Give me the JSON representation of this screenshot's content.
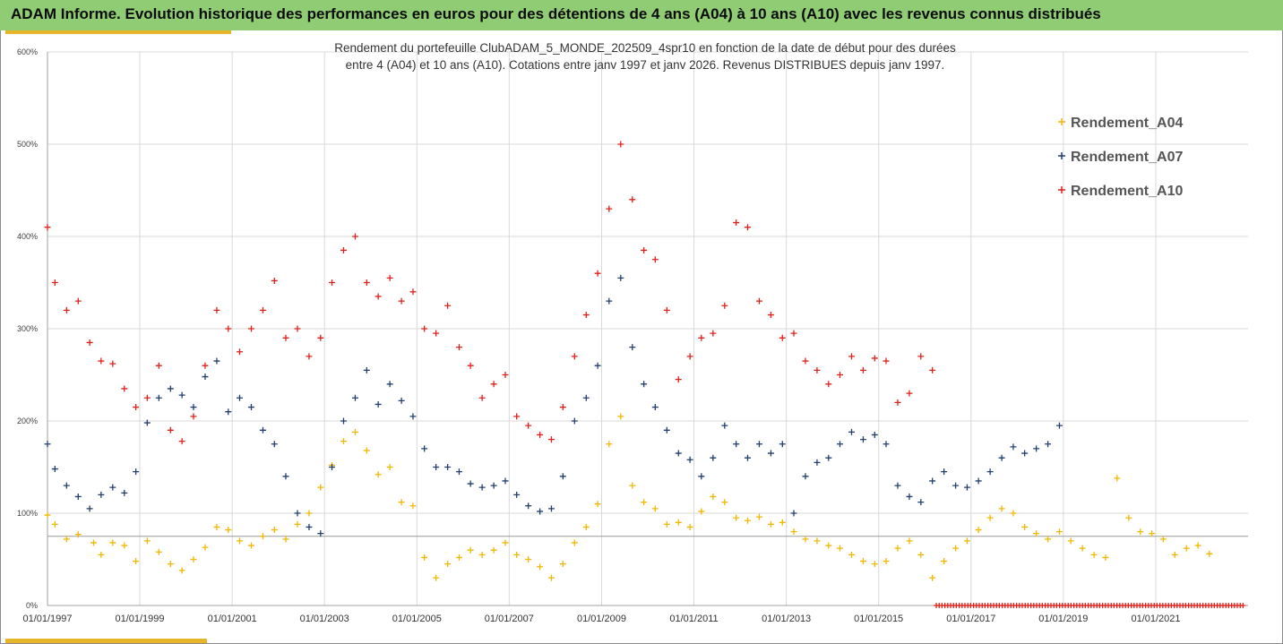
{
  "header": {
    "title": "ADAM Informe. Evolution historique des performances en euros pour des détentions de 4 ans (A04) à 10 ans (A10) avec les revenus connus distribués"
  },
  "colors": {
    "header_bg": "#8fcc74",
    "accent_bar": "#e7b52a",
    "grid": "#d9d9d9"
  },
  "chart_data": {
    "type": "scatter",
    "title_line1": "Rendement du portefeuille ClubADAM_5_MONDE_202509_4spr10  en fonction de la date de début pour des durées",
    "title_line2": "entre 4 (A04) et 10 ans (A10). Cotations entre janv 1997 et janv 2026. Revenus DISTRIBUES depuis janv 1997.",
    "xlabel": "",
    "ylabel": "",
    "x_range": [
      "1997-01-01",
      "2022-12-31"
    ],
    "y_range": [
      0,
      600
    ],
    "y_ticks": [
      "0%",
      "100%",
      "200%",
      "300%",
      "400%",
      "500%",
      "600%"
    ],
    "x_ticks": [
      "01/01/1997",
      "01/01/1999",
      "01/01/2001",
      "01/01/2003",
      "01/01/2005",
      "01/01/2007",
      "01/01/2009",
      "01/01/2011",
      "01/01/2013",
      "01/01/2015",
      "01/01/2017",
      "01/01/2019",
      "01/01/2021"
    ],
    "grid": true,
    "legend_position": "right",
    "reference_line_y": 75,
    "series": [
      {
        "name": "Rendement_A04",
        "color": "#f2b700",
        "marker": "+",
        "points": [
          [
            "1997-01",
            98
          ],
          [
            "1997-03",
            88
          ],
          [
            "1997-06",
            72
          ],
          [
            "1997-09",
            77
          ],
          [
            "1998-01",
            68
          ],
          [
            "1998-03",
            55
          ],
          [
            "1998-06",
            68
          ],
          [
            "1998-09",
            65
          ],
          [
            "1998-12",
            48
          ],
          [
            "1999-03",
            70
          ],
          [
            "1999-06",
            58
          ],
          [
            "1999-09",
            45
          ],
          [
            "1999-12",
            38
          ],
          [
            "2000-03",
            50
          ],
          [
            "2000-06",
            63
          ],
          [
            "2000-09",
            85
          ],
          [
            "2000-12",
            82
          ],
          [
            "2001-03",
            70
          ],
          [
            "2001-06",
            65
          ],
          [
            "2001-09",
            75
          ],
          [
            "2001-12",
            82
          ],
          [
            "2002-03",
            72
          ],
          [
            "2002-06",
            88
          ],
          [
            "2002-09",
            100
          ],
          [
            "2002-12",
            128
          ],
          [
            "2003-03",
            152
          ],
          [
            "2003-06",
            178
          ],
          [
            "2003-09",
            188
          ],
          [
            "2003-12",
            168
          ],
          [
            "2004-03",
            142
          ],
          [
            "2004-06",
            150
          ],
          [
            "2004-09",
            112
          ],
          [
            "2004-12",
            108
          ],
          [
            "2005-03",
            52
          ],
          [
            "2005-06",
            30
          ],
          [
            "2005-09",
            45
          ],
          [
            "2005-12",
            52
          ],
          [
            "2006-03",
            60
          ],
          [
            "2006-06",
            55
          ],
          [
            "2006-09",
            60
          ],
          [
            "2006-12",
            68
          ],
          [
            "2007-03",
            55
          ],
          [
            "2007-06",
            50
          ],
          [
            "2007-09",
            42
          ],
          [
            "2007-12",
            30
          ],
          [
            "2008-03",
            45
          ],
          [
            "2008-06",
            68
          ],
          [
            "2008-09",
            85
          ],
          [
            "2008-12",
            110
          ],
          [
            "2009-03",
            175
          ],
          [
            "2009-06",
            205
          ],
          [
            "2009-09",
            130
          ],
          [
            "2009-12",
            112
          ],
          [
            "2010-03",
            105
          ],
          [
            "2010-06",
            88
          ],
          [
            "2010-09",
            90
          ],
          [
            "2010-12",
            85
          ],
          [
            "2011-03",
            102
          ],
          [
            "2011-06",
            118
          ],
          [
            "2011-09",
            112
          ],
          [
            "2011-12",
            95
          ],
          [
            "2012-03",
            92
          ],
          [
            "2012-06",
            96
          ],
          [
            "2012-09",
            88
          ],
          [
            "2012-12",
            90
          ],
          [
            "2013-03",
            80
          ],
          [
            "2013-06",
            72
          ],
          [
            "2013-09",
            70
          ],
          [
            "2013-12",
            65
          ],
          [
            "2014-03",
            62
          ],
          [
            "2014-06",
            55
          ],
          [
            "2014-09",
            48
          ],
          [
            "2014-12",
            45
          ],
          [
            "2015-03",
            48
          ],
          [
            "2015-06",
            62
          ],
          [
            "2015-09",
            70
          ],
          [
            "2015-12",
            55
          ],
          [
            "2016-03",
            30
          ],
          [
            "2016-06",
            48
          ],
          [
            "2016-09",
            62
          ],
          [
            "2016-12",
            70
          ],
          [
            "2017-03",
            82
          ],
          [
            "2017-06",
            95
          ],
          [
            "2017-09",
            105
          ],
          [
            "2017-12",
            100
          ],
          [
            "2018-03",
            85
          ],
          [
            "2018-06",
            78
          ],
          [
            "2018-09",
            72
          ],
          [
            "2018-12",
            80
          ],
          [
            "2019-03",
            70
          ],
          [
            "2019-06",
            62
          ],
          [
            "2019-09",
            55
          ],
          [
            "2019-12",
            52
          ],
          [
            "2020-03",
            138
          ],
          [
            "2020-06",
            95
          ],
          [
            "2020-09",
            80
          ],
          [
            "2020-12",
            78
          ],
          [
            "2021-03",
            72
          ],
          [
            "2021-06",
            55
          ],
          [
            "2021-09",
            62
          ],
          [
            "2021-12",
            65
          ],
          [
            "2022-03",
            56
          ]
        ]
      },
      {
        "name": "Rendement_A07",
        "color": "#223f6e",
        "marker": "+",
        "points": [
          [
            "1997-01",
            175
          ],
          [
            "1997-03",
            148
          ],
          [
            "1997-06",
            130
          ],
          [
            "1997-09",
            118
          ],
          [
            "1997-12",
            105
          ],
          [
            "1998-03",
            120
          ],
          [
            "1998-06",
            128
          ],
          [
            "1998-09",
            122
          ],
          [
            "1998-12",
            145
          ],
          [
            "1999-03",
            198
          ],
          [
            "1999-06",
            225
          ],
          [
            "1999-09",
            235
          ],
          [
            "1999-12",
            228
          ],
          [
            "2000-03",
            215
          ],
          [
            "2000-06",
            248
          ],
          [
            "2000-09",
            265
          ],
          [
            "2000-12",
            210
          ],
          [
            "2001-03",
            225
          ],
          [
            "2001-06",
            215
          ],
          [
            "2001-09",
            190
          ],
          [
            "2001-12",
            175
          ],
          [
            "2002-03",
            140
          ],
          [
            "2002-06",
            100
          ],
          [
            "2002-09",
            85
          ],
          [
            "2002-12",
            78
          ],
          [
            "2003-03",
            150
          ],
          [
            "2003-06",
            200
          ],
          [
            "2003-09",
            225
          ],
          [
            "2003-12",
            255
          ],
          [
            "2004-03",
            218
          ],
          [
            "2004-06",
            240
          ],
          [
            "2004-09",
            222
          ],
          [
            "2004-12",
            205
          ],
          [
            "2005-03",
            170
          ],
          [
            "2005-06",
            150
          ],
          [
            "2005-09",
            150
          ],
          [
            "2005-12",
            145
          ],
          [
            "2006-03",
            132
          ],
          [
            "2006-06",
            128
          ],
          [
            "2006-09",
            130
          ],
          [
            "2006-12",
            135
          ],
          [
            "2007-03",
            120
          ],
          [
            "2007-06",
            108
          ],
          [
            "2007-09",
            102
          ],
          [
            "2007-12",
            105
          ],
          [
            "2008-03",
            140
          ],
          [
            "2008-06",
            200
          ],
          [
            "2008-09",
            225
          ],
          [
            "2008-12",
            260
          ],
          [
            "2009-03",
            330
          ],
          [
            "2009-06",
            355
          ],
          [
            "2009-09",
            280
          ],
          [
            "2009-12",
            240
          ],
          [
            "2010-03",
            215
          ],
          [
            "2010-06",
            190
          ],
          [
            "2010-09",
            165
          ],
          [
            "2010-12",
            158
          ],
          [
            "2011-03",
            140
          ],
          [
            "2011-06",
            160
          ],
          [
            "2011-09",
            195
          ],
          [
            "2011-12",
            175
          ],
          [
            "2012-03",
            160
          ],
          [
            "2012-06",
            175
          ],
          [
            "2012-09",
            165
          ],
          [
            "2012-12",
            175
          ],
          [
            "2013-03",
            100
          ],
          [
            "2013-06",
            140
          ],
          [
            "2013-09",
            155
          ],
          [
            "2013-12",
            160
          ],
          [
            "2014-03",
            175
          ],
          [
            "2014-06",
            188
          ],
          [
            "2014-09",
            180
          ],
          [
            "2014-12",
            185
          ],
          [
            "2015-03",
            175
          ],
          [
            "2015-06",
            130
          ],
          [
            "2015-09",
            118
          ],
          [
            "2015-12",
            112
          ],
          [
            "2016-03",
            135
          ],
          [
            "2016-06",
            145
          ],
          [
            "2016-09",
            130
          ],
          [
            "2016-12",
            128
          ],
          [
            "2017-03",
            135
          ],
          [
            "2017-06",
            145
          ],
          [
            "2017-09",
            160
          ],
          [
            "2017-12",
            172
          ],
          [
            "2018-03",
            165
          ],
          [
            "2018-06",
            170
          ],
          [
            "2018-09",
            175
          ],
          [
            "2018-12",
            195
          ]
        ]
      },
      {
        "name": "Rendement_A10",
        "color": "#e0201b",
        "marker": "+",
        "points": [
          [
            "1997-01",
            410
          ],
          [
            "1997-03",
            350
          ],
          [
            "1997-06",
            320
          ],
          [
            "1997-09",
            330
          ],
          [
            "1997-12",
            285
          ],
          [
            "1998-03",
            265
          ],
          [
            "1998-06",
            262
          ],
          [
            "1998-09",
            235
          ],
          [
            "1998-12",
            215
          ],
          [
            "1999-03",
            225
          ],
          [
            "1999-06",
            260
          ],
          [
            "1999-09",
            190
          ],
          [
            "1999-12",
            178
          ],
          [
            "2000-03",
            205
          ],
          [
            "2000-06",
            260
          ],
          [
            "2000-09",
            320
          ],
          [
            "2000-12",
            300
          ],
          [
            "2001-03",
            275
          ],
          [
            "2001-06",
            300
          ],
          [
            "2001-09",
            320
          ],
          [
            "2001-12",
            352
          ],
          [
            "2002-03",
            290
          ],
          [
            "2002-06",
            300
          ],
          [
            "2002-09",
            270
          ],
          [
            "2002-12",
            290
          ],
          [
            "2003-03",
            350
          ],
          [
            "2003-06",
            385
          ],
          [
            "2003-09",
            400
          ],
          [
            "2003-12",
            350
          ],
          [
            "2004-03",
            335
          ],
          [
            "2004-06",
            355
          ],
          [
            "2004-09",
            330
          ],
          [
            "2004-12",
            340
          ],
          [
            "2005-03",
            300
          ],
          [
            "2005-06",
            295
          ],
          [
            "2005-09",
            325
          ],
          [
            "2005-12",
            280
          ],
          [
            "2006-03",
            260
          ],
          [
            "2006-06",
            225
          ],
          [
            "2006-09",
            240
          ],
          [
            "2006-12",
            250
          ],
          [
            "2007-03",
            205
          ],
          [
            "2007-06",
            195
          ],
          [
            "2007-09",
            185
          ],
          [
            "2007-12",
            180
          ],
          [
            "2008-03",
            215
          ],
          [
            "2008-06",
            270
          ],
          [
            "2008-09",
            315
          ],
          [
            "2008-12",
            360
          ],
          [
            "2009-03",
            430
          ],
          [
            "2009-06",
            500
          ],
          [
            "2009-09",
            440
          ],
          [
            "2009-12",
            385
          ],
          [
            "2010-03",
            375
          ],
          [
            "2010-06",
            320
          ],
          [
            "2010-09",
            245
          ],
          [
            "2010-12",
            270
          ],
          [
            "2011-03",
            290
          ],
          [
            "2011-06",
            295
          ],
          [
            "2011-09",
            325
          ],
          [
            "2011-12",
            415
          ],
          [
            "2012-03",
            410
          ],
          [
            "2012-06",
            330
          ],
          [
            "2012-09",
            315
          ],
          [
            "2012-12",
            290
          ],
          [
            "2013-03",
            295
          ],
          [
            "2013-06",
            265
          ],
          [
            "2013-09",
            255
          ],
          [
            "2013-12",
            240
          ],
          [
            "2014-03",
            250
          ],
          [
            "2014-06",
            270
          ],
          [
            "2014-09",
            255
          ],
          [
            "2014-12",
            268
          ],
          [
            "2015-03",
            265
          ],
          [
            "2015-06",
            220
          ],
          [
            "2015-09",
            230
          ],
          [
            "2015-12",
            270
          ],
          [
            "2016-03",
            255
          ]
        ]
      },
      {
        "name": "",
        "color": "#e0201b",
        "marker": "+",
        "note_points": "zero band",
        "points": [
          [
            "2016-04",
            0
          ],
          [
            "2022-12",
            0
          ]
        ]
      }
    ]
  }
}
